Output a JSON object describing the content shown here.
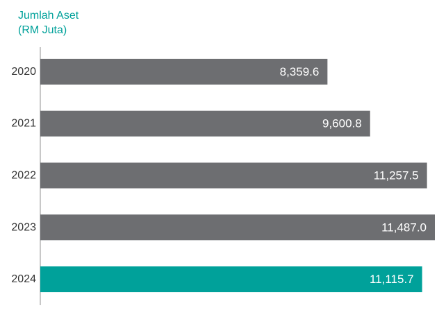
{
  "chart_data": {
    "type": "bar",
    "orientation": "horizontal",
    "title": "Jumlah Aset",
    "subtitle": "(RM Juta)",
    "categories": [
      "2020",
      "2021",
      "2022",
      "2023",
      "2024"
    ],
    "values": [
      8359.6,
      9600.8,
      11257.5,
      11487.0,
      11115.7
    ],
    "value_labels": [
      "8,359.6",
      "9,600.8",
      "11,257.5",
      "11,487.0",
      "11,115.7"
    ],
    "grid": false,
    "legend": "none",
    "colors": {
      "bar": "#6d6e71",
      "highlight_bar": "#00a19a",
      "title": "#00a19a",
      "axis": "#c8c8c8",
      "category_text": "#333333",
      "value_text": "#ffffff"
    },
    "highlight_category": "2024"
  }
}
